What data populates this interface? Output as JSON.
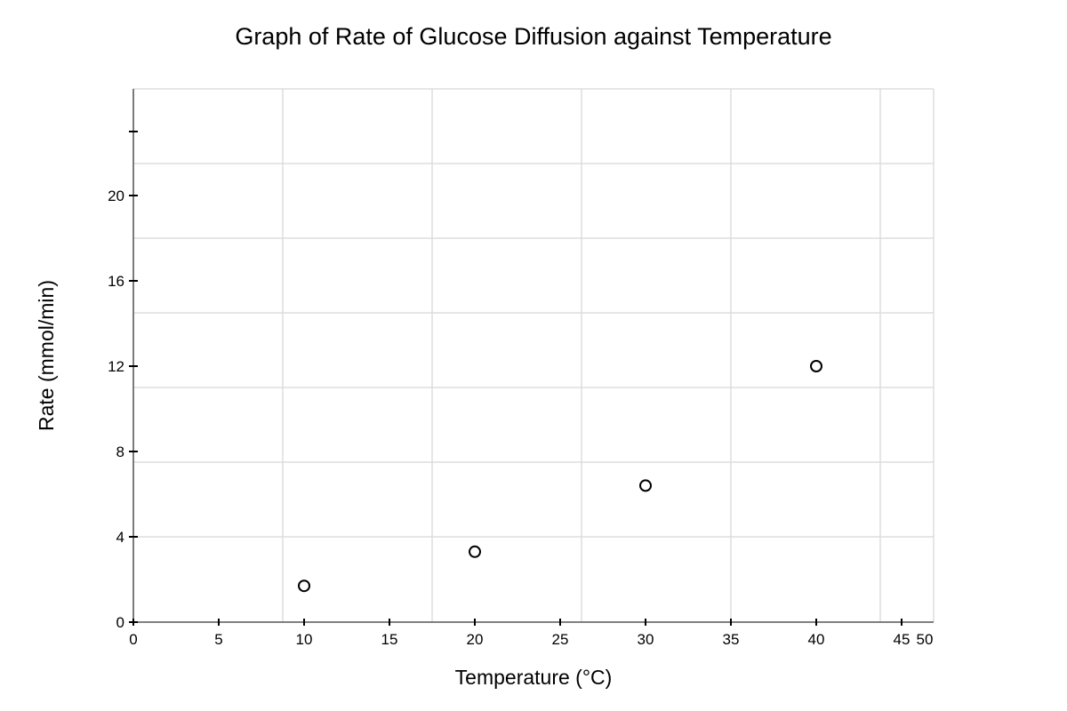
{
  "chart_data": {
    "type": "scatter",
    "title": "Graph of Rate of Glucose Diffusion against Temperature",
    "xlabel": "Temperature (°C)",
    "ylabel": "Rate (mmol/min)",
    "xlim": [
      0,
      50
    ],
    "ylim": [
      0,
      24
    ],
    "x_ticks": [
      {
        "value": 0,
        "label": "0"
      },
      {
        "value": 5,
        "label": "5"
      },
      {
        "value": 10,
        "label": "10"
      },
      {
        "value": 15,
        "label": "15"
      },
      {
        "value": 20,
        "label": "20"
      },
      {
        "value": 25,
        "label": "25"
      },
      {
        "value": 30,
        "label": "30"
      },
      {
        "value": 35,
        "label": "35"
      },
      {
        "value": 40,
        "label": "40"
      },
      {
        "value": 45,
        "label": "45"
      },
      {
        "value": 50,
        "label": "50"
      }
    ],
    "y_ticks": [
      {
        "value": 0,
        "label": "0"
      },
      {
        "value": 4,
        "label": "4"
      },
      {
        "value": 8,
        "label": "8"
      },
      {
        "value": 12,
        "label": "12"
      },
      {
        "value": 16,
        "label": "16"
      },
      {
        "value": 20,
        "label": "20"
      },
      {
        "value": 23,
        "label": ""
      }
    ],
    "grid": true,
    "marker": "hollow-circle",
    "series": [
      {
        "points": [
          {
            "x": 10,
            "y": 1.7
          },
          {
            "x": 20,
            "y": 3.3
          },
          {
            "x": 30,
            "y": 6.4
          },
          {
            "x": 40,
            "y": 12.0
          }
        ]
      }
    ]
  }
}
